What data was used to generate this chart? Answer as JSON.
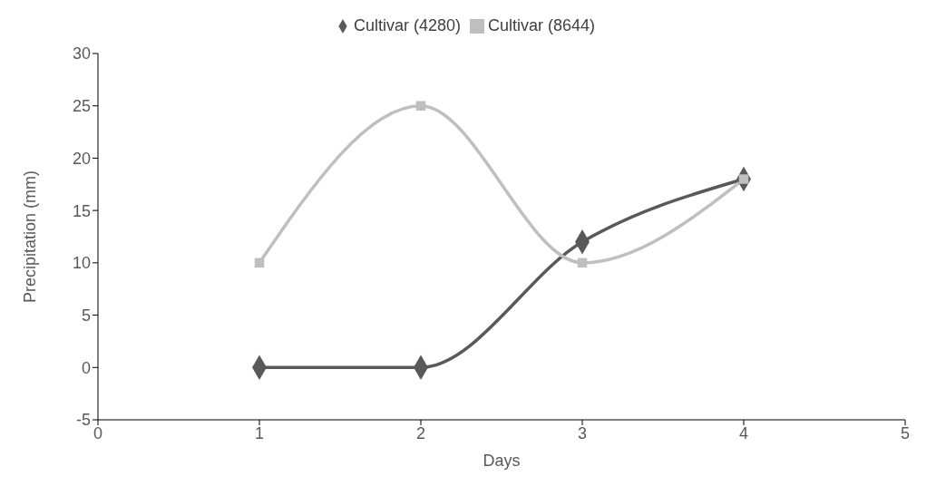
{
  "chart_data": {
    "type": "line",
    "xlabel": "Days",
    "ylabel": "Precipitation (mm)",
    "x": [
      1,
      2,
      3,
      4
    ],
    "series": [
      {
        "name": "Cultivar (4280)",
        "color": "#595959",
        "marker": "diamond",
        "values": [
          0,
          0,
          12,
          18
        ]
      },
      {
        "name": "Cultivar (8644)",
        "color": "#bfbfbf",
        "marker": "square",
        "values": [
          10,
          25,
          10,
          18
        ]
      }
    ],
    "xlim": [
      0,
      5
    ],
    "xticks": [
      0,
      1,
      2,
      3,
      4,
      5
    ],
    "ylim": [
      -5,
      30
    ],
    "yticks": [
      -5,
      0,
      5,
      10,
      15,
      20,
      25,
      30
    ],
    "grid": false,
    "legend": "top",
    "line_style": "solid"
  }
}
